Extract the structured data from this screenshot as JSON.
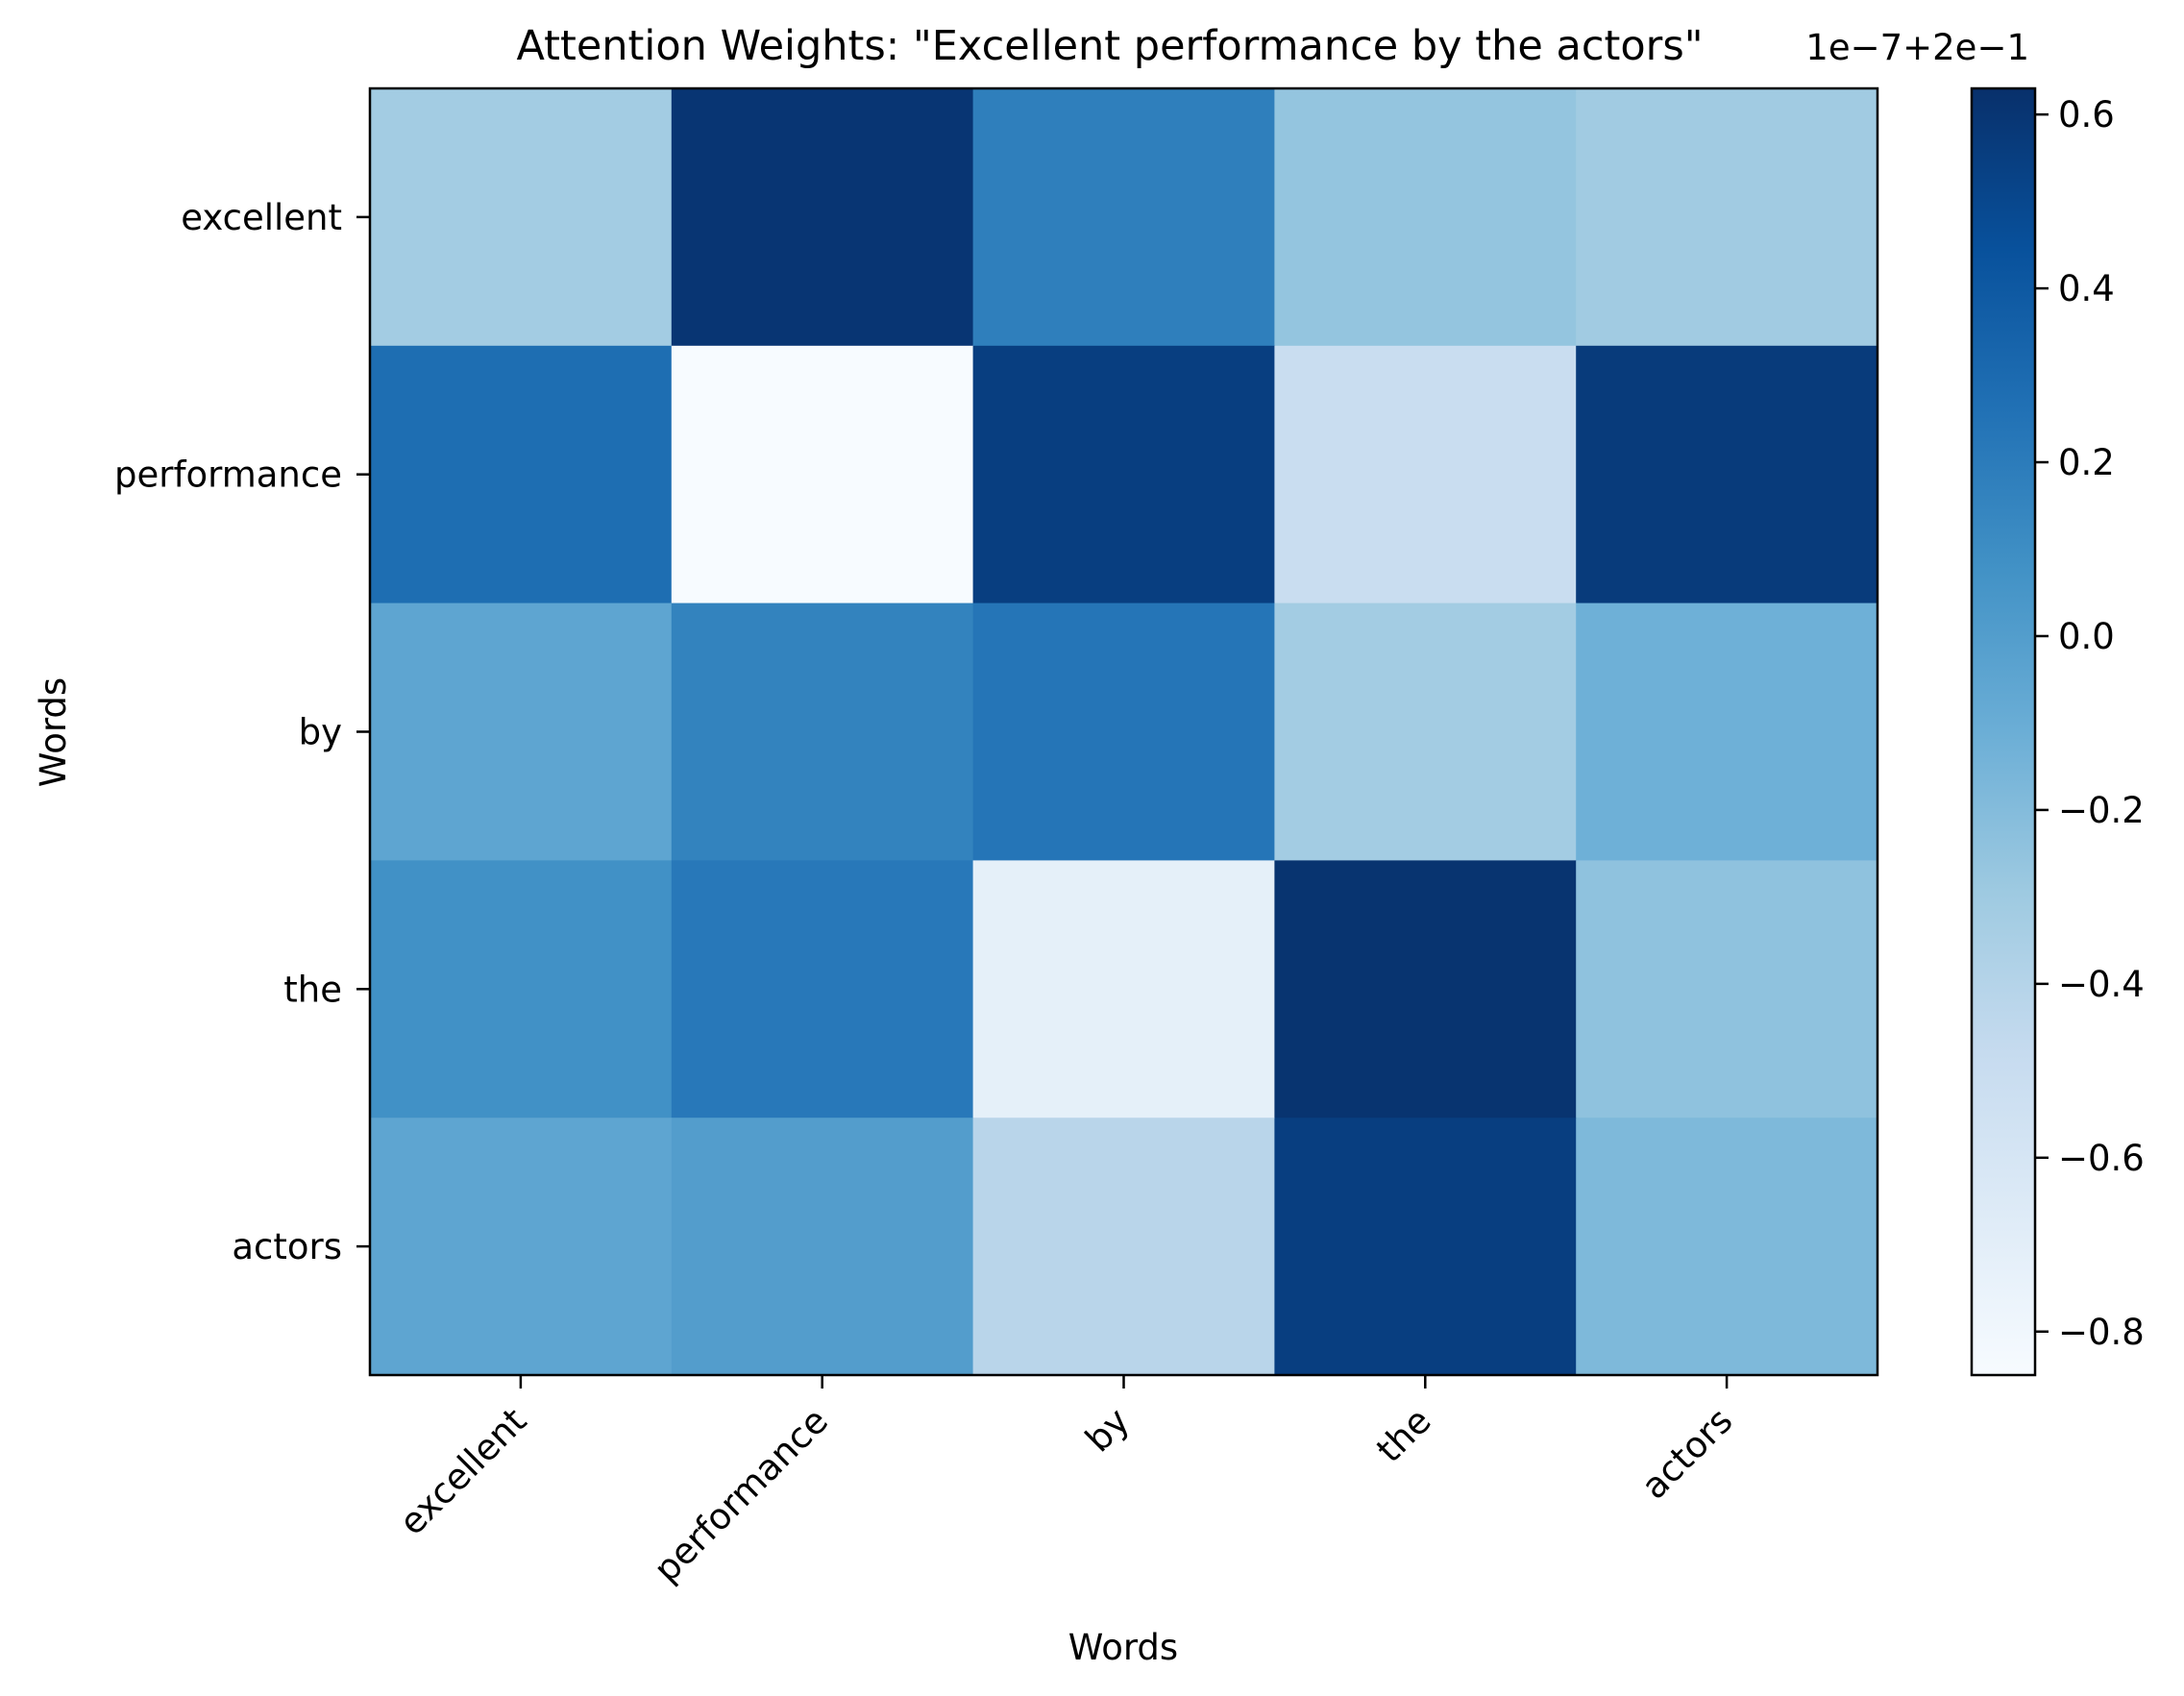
{
  "chart_data": {
    "type": "heatmap",
    "title": "Attention Weights: \"Excellent performance by the actors\"",
    "xlabel": "Words",
    "ylabel": "Words",
    "x_categories": [
      "excellent",
      "performance",
      "by",
      "the",
      "actors"
    ],
    "y_categories": [
      "excellent",
      "performance",
      "by",
      "the",
      "actors"
    ],
    "values": [
      [
        -0.32,
        0.6,
        0.18,
        -0.26,
        -0.31
      ],
      [
        0.28,
        -0.85,
        0.55,
        -0.5,
        0.57
      ],
      [
        -0.05,
        0.16,
        0.24,
        -0.32,
        -0.12
      ],
      [
        0.08,
        0.22,
        -0.72,
        0.61,
        -0.24
      ],
      [
        -0.05,
        0.0,
        -0.42,
        0.55,
        -0.18
      ]
    ],
    "colormap": "Blues",
    "colorbar": {
      "range": [
        -0.85,
        0.63
      ],
      "ticks": [
        -0.8,
        -0.6,
        -0.4,
        -0.2,
        0.0,
        0.2,
        0.4,
        0.6
      ],
      "tick_labels": [
        "−0.8",
        "−0.6",
        "−0.4",
        "−0.2",
        "0.0",
        "0.2",
        "0.4",
        "0.6"
      ],
      "offset_label": "1e−7+2e−1"
    }
  }
}
